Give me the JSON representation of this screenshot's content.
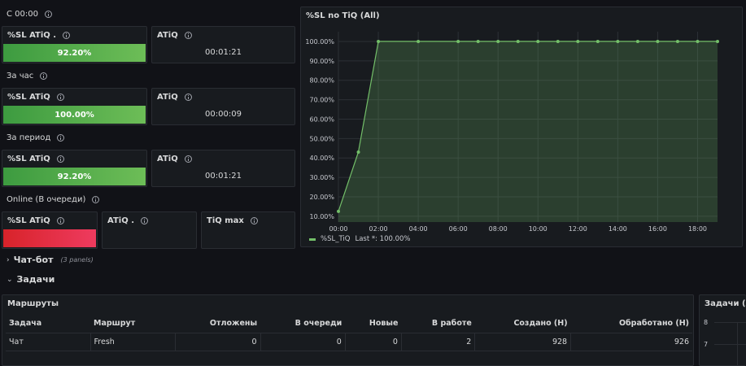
{
  "sections": {
    "s00": "С 00:00",
    "hour": "За час",
    "period": "За период",
    "online": "Online (В очереди)"
  },
  "stats": {
    "s00_sl": {
      "label": "%SL ATiQ .",
      "value": "92.20%"
    },
    "s00_atiq": {
      "label": "ATiQ",
      "value": "00:01:21"
    },
    "hour_sl": {
      "label": "%SL ATiQ",
      "value": "100.00%"
    },
    "hour_atiq": {
      "label": "ATiQ",
      "value": "00:00:09"
    },
    "period_sl": {
      "label": "%SL ATiQ",
      "value": "92.20%"
    },
    "period_atiq": {
      "label": "ATiQ",
      "value": "00:01:21"
    },
    "online_sl": {
      "label": "%SL ATiQ",
      "value": ""
    },
    "online_atiq": {
      "label": "ATiQ .",
      "value": ""
    },
    "online_tiqmax": {
      "label": "TiQ max",
      "value": ""
    }
  },
  "colors": {
    "green": "#73bf69",
    "red": "#e02f44",
    "panel_bg": "#181b1f",
    "border": "#2a2d33"
  },
  "chart_panel": {
    "title": "%SL no TiQ (All)"
  },
  "chart_data": {
    "type": "area",
    "x": [
      "00:00",
      "01:00",
      "02:00",
      "04:00",
      "06:00",
      "07:00",
      "08:00",
      "09:00",
      "10:00",
      "11:00",
      "12:00",
      "13:00",
      "14:00",
      "15:00",
      "16:00",
      "17:00",
      "18:00",
      "19:00"
    ],
    "series": [
      {
        "name": "%SL_TiQ",
        "values": [
          12.5,
          43,
          100,
          100,
          100,
          100,
          100,
          100,
          100,
          100,
          100,
          100,
          100,
          100,
          100,
          100,
          100,
          100
        ]
      }
    ],
    "x_ticks": [
      "00:00",
      "02:00",
      "04:00",
      "06:00",
      "08:00",
      "10:00",
      "12:00",
      "14:00",
      "16:00",
      "18:00"
    ],
    "y_ticks": [
      "10.00%",
      "20.00%",
      "30.00%",
      "40.00%",
      "50.00%",
      "60.00%",
      "70.00%",
      "80.00%",
      "90.00%",
      "100.00%"
    ],
    "x_range_hours": [
      0,
      19
    ],
    "ylim": [
      7,
      105
    ],
    "grid": true,
    "legend": {
      "placement": "bottom-left",
      "name": "%SL_TiQ",
      "last": "Last *: 100.00%"
    },
    "line_color": "#73bf69"
  },
  "rows": {
    "chatbot": {
      "chevron": "›",
      "label": "Чат-бот",
      "sub": "(3 panels)"
    },
    "tasks": {
      "chevron": "⌄",
      "label": "Задачи"
    }
  },
  "routes_panel": {
    "title": "Маршруты",
    "columns": [
      "Задача",
      "Маршрут",
      "Отложены",
      "В очереди",
      "Новые",
      "В работе",
      "Создано (Н)",
      "Обработано (Н)"
    ],
    "rows": [
      [
        "Чат",
        "Fresh",
        "0",
        "0",
        "0",
        "2",
        "928",
        "926"
      ]
    ]
  },
  "tasks_panel": {
    "title": "Задачи (All",
    "y_ticks": [
      "8",
      "7"
    ]
  }
}
